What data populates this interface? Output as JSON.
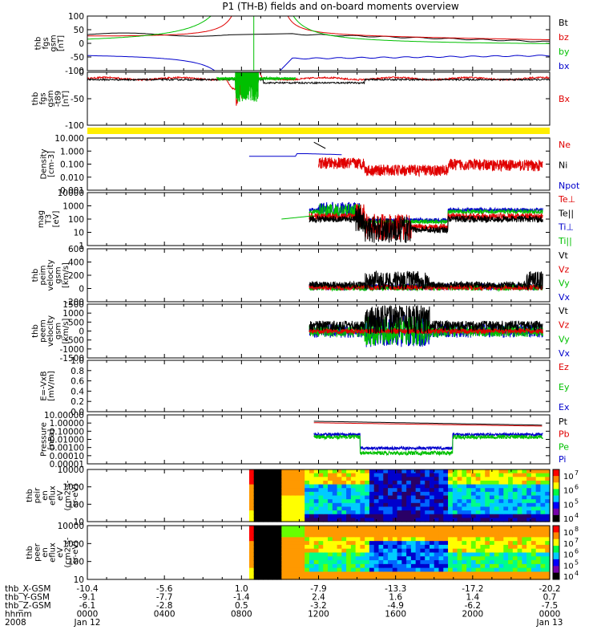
{
  "title": "P1 (TH-B) fields and on-board moments overview",
  "colors": {
    "black": "#000000",
    "red": "#e00000",
    "green": "#00c000",
    "blue": "#0000cc",
    "yellow": "#ffee00"
  },
  "chart_data": [
    {
      "type": "line",
      "id": "fgs",
      "ylabel_lines": [
        "thb",
        "fgs",
        "gsm",
        "[nT]"
      ],
      "ylim": [
        -100,
        100
      ],
      "yticks": [
        "100",
        "50",
        "0",
        "-50",
        "-100"
      ],
      "legend": [
        {
          "label": "Bt",
          "color": "black"
        },
        {
          "label": "bz",
          "color": "red"
        },
        {
          "label": "by",
          "color": "green"
        },
        {
          "label": "bx",
          "color": "blue"
        }
      ]
    },
    {
      "type": "line",
      "id": "fgs-t89",
      "ylabel_lines": [
        "thb",
        "fgs",
        "gsm",
        "-t89",
        "[nT]"
      ],
      "ylim": [
        -130,
        20
      ],
      "yticks": [
        "0",
        "-50",
        "-100"
      ],
      "legend": [
        {
          "label": "Bx",
          "color": "red"
        }
      ]
    },
    {
      "type": "line",
      "id": "density",
      "scale": "log",
      "ylabel_lines": [
        "Density",
        "[cm-3]"
      ],
      "yticks": [
        "10.000",
        "1.000",
        "0.100",
        "0.010",
        "0.001"
      ],
      "legend": [
        {
          "label": "Ne",
          "color": "red"
        },
        {
          "label": "Ni",
          "color": "black"
        },
        {
          "label": "Npot",
          "color": "blue"
        }
      ]
    },
    {
      "type": "line",
      "id": "temperature",
      "scale": "log",
      "ylabel_lines": [
        "mag",
        "T3",
        "[eV]"
      ],
      "yticks": [
        "10000",
        "1000",
        "100",
        "10",
        "1"
      ],
      "legend": [
        {
          "label": "Te⊥",
          "color": "red"
        },
        {
          "label": "Te||",
          "color": "black"
        },
        {
          "label": "Ti⊥",
          "color": "blue"
        },
        {
          "label": "Ti||",
          "color": "green"
        }
      ]
    },
    {
      "type": "line",
      "id": "peim-velocity",
      "ylabel_lines": [
        "thb",
        "peim",
        "velocity",
        "gsm",
        "[km/s]"
      ],
      "ylim": [
        -200,
        600
      ],
      "yticks": [
        "600",
        "400",
        "200",
        "0",
        "-200"
      ],
      "legend": [
        {
          "label": "Vt",
          "color": "black"
        },
        {
          "label": "Vz",
          "color": "red"
        },
        {
          "label": "Vy",
          "color": "green"
        },
        {
          "label": "Vx",
          "color": "blue"
        }
      ]
    },
    {
      "type": "line",
      "id": "peem-velocity",
      "ylabel_lines": [
        "thb",
        "peem",
        "velocity",
        "gsm",
        "[km/s]"
      ],
      "ylim": [
        -1500,
        1500
      ],
      "yticks": [
        "1500",
        "1000",
        "500",
        "0",
        "-500",
        "-1000",
        "-1500"
      ],
      "legend": [
        {
          "label": "Vt",
          "color": "black"
        },
        {
          "label": "Vz",
          "color": "red"
        },
        {
          "label": "Vy",
          "color": "green"
        },
        {
          "label": "Vx",
          "color": "blue"
        }
      ]
    },
    {
      "type": "line",
      "id": "e-field",
      "ylabel_lines": [
        "E=-VxB",
        "[mV/m]"
      ],
      "ylim": [
        0,
        1
      ],
      "yticks": [
        "1.0",
        "0.8",
        "0.6",
        "0.4",
        "0.2",
        "0.0"
      ],
      "legend": [
        {
          "label": "Ez",
          "color": "red"
        },
        {
          "label": "Ey",
          "color": "green"
        },
        {
          "label": "Ex",
          "color": "blue"
        }
      ]
    },
    {
      "type": "line",
      "id": "pressure",
      "scale": "log",
      "ylabel_lines": [
        "Pressure",
        "[nPa]"
      ],
      "yticks": [
        "10.00000",
        "1.00000",
        "0.10000",
        "0.01000",
        "0.00100",
        "0.00010",
        "0.00001"
      ],
      "legend": [
        {
          "label": "Pt",
          "color": "black"
        },
        {
          "label": "Pb",
          "color": "red"
        },
        {
          "label": "Pe",
          "color": "green"
        },
        {
          "label": "Pi",
          "color": "blue"
        }
      ]
    },
    {
      "type": "heatmap",
      "id": "peir-en-eflux",
      "ylabel_lines": [
        "thb",
        "peir",
        "en",
        "eflux",
        "eV",
        "(cm2-s-",
        "sr-eV)"
      ],
      "yticks": [
        "10000",
        "1000",
        "100",
        "10"
      ],
      "colorbar_ticks": [
        "10^7",
        "10^6",
        "10^5",
        "10^4"
      ]
    },
    {
      "type": "heatmap",
      "id": "peer-en-eflux",
      "ylabel_lines": [
        "thb",
        "peer",
        "en",
        "eflux",
        "eV",
        "(cm2-s-",
        "sr-eV)"
      ],
      "yticks": [
        "10000",
        "1000",
        "100",
        "10"
      ],
      "colorbar_ticks": [
        "10^8",
        "10^7",
        "10^6",
        "10^5",
        "10^4"
      ]
    }
  ],
  "xaxis": {
    "row_labels": [
      "thb_X-GSM",
      "thb_Y-GSM",
      "thb_Z-GSM",
      "hhmm",
      "2008"
    ],
    "columns": [
      {
        "values": [
          "-10.4",
          "-9.1",
          "-6.1",
          "0000",
          "Jan 12"
        ]
      },
      {
        "values": [
          "-5.6",
          "-7.7",
          "-2.8",
          "0400",
          ""
        ]
      },
      {
        "values": [
          "1.0",
          "-1.4",
          "0.5",
          "0800",
          ""
        ]
      },
      {
        "values": [
          "-7.9",
          "2.4",
          "-3.2",
          "1200",
          ""
        ]
      },
      {
        "values": [
          "-13.3",
          "1.6",
          "-4.9",
          "1600",
          ""
        ]
      },
      {
        "values": [
          "-17.2",
          "1.4",
          "-6.2",
          "2000",
          ""
        ]
      },
      {
        "values": [
          "-20.2",
          "0.7",
          "-7.5",
          "0000",
          "Jan 13"
        ]
      }
    ]
  }
}
